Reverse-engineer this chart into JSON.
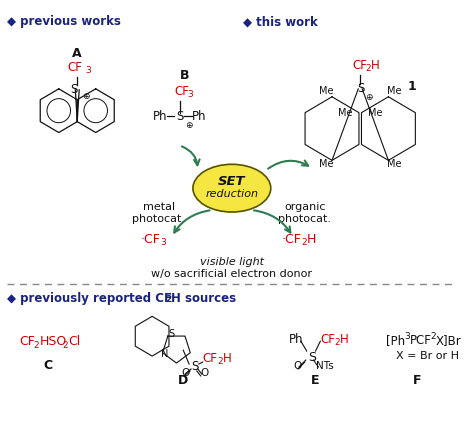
{
  "bg_color": "#ffffff",
  "diamond_color": "#1a237e",
  "red_color": "#cc0000",
  "green_color": "#2e7d52",
  "yellow_color": "#f5e642",
  "dark_color": "#111111",
  "section1_label": "◆ previous works",
  "section2_label": "◆ this work",
  "section3_label": "◆ previously reported CF",
  "section3_sub": "2",
  "section3_rest": "H sources",
  "metal_text": "metal\nphotocat.",
  "organic_text": "organic\nphotocat.",
  "visible_light": "visible light",
  "w_o_sacrificial": "w/o sacrificial electron donor"
}
